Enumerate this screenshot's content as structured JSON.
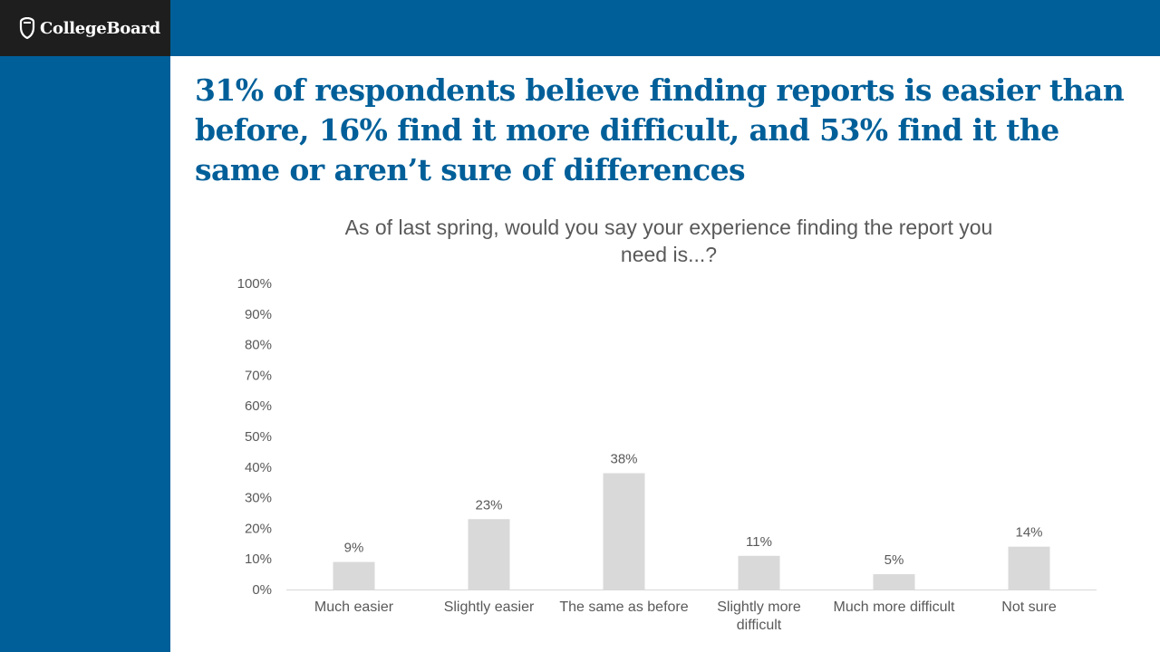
{
  "brand": {
    "logo_text": "CollegeBoard",
    "logo_icon": "acorn-shield-icon",
    "colors": {
      "primary": "#005f99",
      "logo_bg": "#1e1e1e",
      "bar": "#d9d9d9",
      "text": "#595959"
    }
  },
  "headline": "31% of respondents believe finding reports is easier than before, 16% find it more difficult, and 53% find it the same or aren’t sure of differences",
  "chart_data": {
    "type": "bar",
    "title": "As of last spring, would you say your experience finding the report you need is...?",
    "xlabel": "",
    "ylabel": "",
    "categories": [
      "Much easier",
      "Slightly easier",
      "The same as before",
      "Slightly more difficult",
      "Much more difficult",
      "Not sure"
    ],
    "category_lines": [
      [
        "Much easier"
      ],
      [
        "Slightly easier"
      ],
      [
        "The same as before"
      ],
      [
        "Slightly more",
        "difficult"
      ],
      [
        "Much more difficult"
      ],
      [
        "Not sure"
      ]
    ],
    "values": [
      9,
      23,
      38,
      11,
      5,
      14
    ],
    "value_labels": [
      "9%",
      "23%",
      "38%",
      "11%",
      "5%",
      "14%"
    ],
    "ylim": [
      0,
      100
    ],
    "yticks": [
      0,
      10,
      20,
      30,
      40,
      50,
      60,
      70,
      80,
      90,
      100
    ],
    "ytick_labels": [
      "0%",
      "10%",
      "20%",
      "30%",
      "40%",
      "50%",
      "60%",
      "70%",
      "80%",
      "90%",
      "100%"
    ],
    "grid": false,
    "legend": "none"
  }
}
